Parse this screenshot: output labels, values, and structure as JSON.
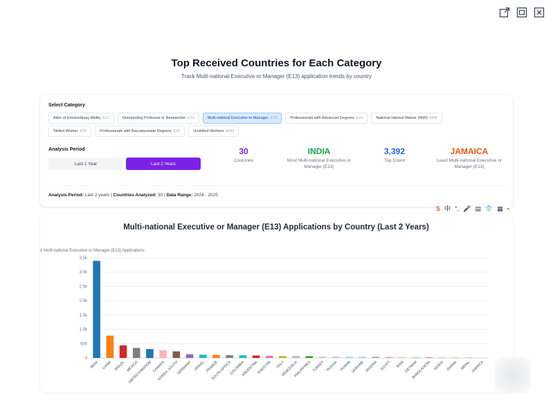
{
  "page": {
    "title": "Top Received Countries for Each Category",
    "subtitle": "Track Multi-national Executive or Manager (E13) application trends by country"
  },
  "window_controls": [
    {
      "icon": "open-external-icon"
    },
    {
      "icon": "maximize-icon"
    },
    {
      "icon": "close-icon"
    }
  ],
  "category_section": {
    "label": "Select Category",
    "chips": [
      {
        "label": "Alien of Extraordinary Ability",
        "code": "E11",
        "active": false
      },
      {
        "label": "Outstanding Professor or Researcher",
        "code": "E12",
        "active": false
      },
      {
        "label": "Multi-national Executive or Manager",
        "code": "E13",
        "active": true
      },
      {
        "label": "Professionals with Advanced Degrees",
        "code": "E21",
        "active": false
      },
      {
        "label": "National Interest Waiver (NIW)",
        "code": "NIW",
        "active": false
      },
      {
        "label": "Skilled Worker",
        "code": "E31",
        "active": false
      },
      {
        "label": "Professionals with Baccalaureate Degrees",
        "code": "E32",
        "active": false
      },
      {
        "label": "Unskilled Workers",
        "code": "EW3",
        "active": false
      }
    ]
  },
  "analysis_period": {
    "label": "Analysis Period",
    "last_1_year": "Last 1 Year",
    "last_2_years": "Last 2 Years",
    "selected": "Last 2 Years"
  },
  "stats": {
    "countries": {
      "value": "30",
      "label": "Countries",
      "color": "#7e22ce"
    },
    "most": {
      "value": "INDIA",
      "label": "Most Multi-national Executive or Manager (E13)",
      "color": "#16a34a"
    },
    "top_count": {
      "value": "3,392",
      "label": "Top Count",
      "color": "#2563eb"
    },
    "least": {
      "value": "JAMAICA",
      "label": "Least Multi-national Executive or Manager (E13)",
      "color": "#ea580c"
    }
  },
  "info": {
    "period_label": "Analysis Period:",
    "period_value": "Last 2 years",
    "countries_label": "Countries Analyzed:",
    "countries_value": "30",
    "range_label": "Data Range:",
    "range_value": "2024 - 2025"
  },
  "toolbar": {
    "items": [
      "S",
      "中",
      "°,",
      "🎤",
      "▤",
      "👕",
      "▦",
      "▪"
    ]
  },
  "chart_data": {
    "type": "bar",
    "title": "Multi-national Executive or Manager (E13) Applications by Country (Last 2 Years)",
    "ylabel": "d Multi-national Executive or Manager (E13) Applications",
    "xlabel": "",
    "ylim": [
      0,
      3500
    ],
    "yticks": [
      0,
      500,
      1000,
      1500,
      2000,
      2500,
      3000,
      3500
    ],
    "ytick_labels": [
      "0",
      "500",
      "1.0k",
      "1.5k",
      "2.0k",
      "2.5k",
      "3.0k",
      "3.5k"
    ],
    "grid": true,
    "categories": [
      "INDIA",
      "CHINA",
      "BRAZIL",
      "MEXICO",
      "UNITED KINGDOM",
      "CANADA",
      "KOREA, SOUTH",
      "GERMANY",
      "ISRAEL",
      "FRANCE",
      "SOUTH AFRICA",
      "COLOMBIA",
      "ARGENTINA",
      "PAKISTAN",
      "ITALY",
      "VENEZUELA",
      "PHILIPPINES",
      "TURKEY",
      "RUSSIA",
      "TAIWAN",
      "UKRAINE",
      "NIGERIA",
      "EGYPT",
      "IRAN",
      "VIETNAM",
      "BANGLADESH",
      "KENYA",
      "GHANA",
      "NEPAL",
      "JAMAICA"
    ],
    "values": [
      3392,
      780,
      440,
      350,
      310,
      270,
      230,
      130,
      115,
      105,
      100,
      95,
      85,
      75,
      70,
      65,
      60,
      50,
      45,
      42,
      40,
      38,
      35,
      32,
      28,
      25,
      22,
      20,
      18,
      15
    ],
    "colors": [
      "#1f77b4",
      "#ff7f0e",
      "#d62728",
      "#7f7f7f",
      "#1f77b4",
      "#ffb3b3",
      "#8c564b",
      "#9467bd",
      "#17becf",
      "#ff7f0e",
      "#7f7f7f",
      "#17becf",
      "#d62728",
      "#e377c2",
      "#bcbd22",
      "#c5b0d5",
      "#2ca02c",
      "#f7b6d2",
      "#c7c7c7",
      "#9edae5",
      "#aec7e8",
      "#c49c94",
      "#ff9896",
      "#dbdb8d",
      "#98df8a",
      "#e377c2",
      "#c7c7c7",
      "#ffbb78",
      "#c5b0d5",
      "#d9d9d9"
    ]
  }
}
